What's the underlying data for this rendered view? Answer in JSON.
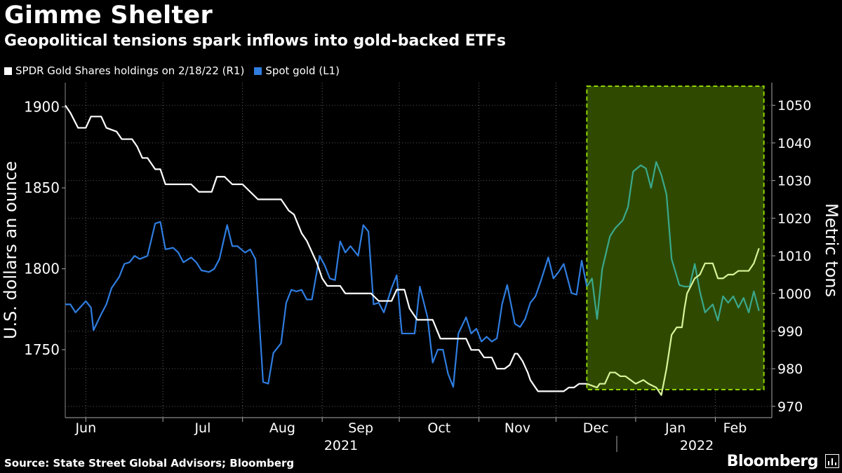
{
  "header": {
    "title": "Gimme Shelter",
    "subtitle": "Geopolitical tensions spark inflows into gold-backed ETFs"
  },
  "legend": {
    "items": [
      {
        "label": "SPDR Gold Shares holdings on 2/18/22 (R1)",
        "color": "#ffffff"
      },
      {
        "label": "Spot gold (L1)",
        "color": "#2f7de0"
      }
    ]
  },
  "footer": {
    "source": "Source: State Street Global Advisors; Bloomberg",
    "brand": "Bloomberg"
  },
  "colors": {
    "background": "#000000",
    "gold_line": "#2f7de0",
    "holdings_line": "#ffffff",
    "highlight_fill": "#2f4a00",
    "highlight_border": "#8fd400",
    "holdings_in_highlight": "#d9f59a",
    "gold_in_highlight": "#3aa88c"
  },
  "chart_data": {
    "type": "line",
    "x_axis": {
      "month_labels": [
        "Jun",
        "Jul",
        "Aug",
        "Sep",
        "Oct",
        "Nov",
        "Dec",
        "Jan",
        "Feb"
      ],
      "year_labels": [
        "2021",
        "2022"
      ],
      "range": [
        "2021-05-24",
        "2022-02-23"
      ]
    },
    "y_left": {
      "label": "U.S. dollars an ounce",
      "ticks": [
        1750,
        1800,
        1850,
        1900
      ],
      "range": [
        1708,
        1915
      ]
    },
    "y_right": {
      "label": "Metric tons",
      "ticks": [
        970,
        980,
        990,
        1000,
        1010,
        1020,
        1030,
        1040,
        1050
      ],
      "range": [
        967,
        1056
      ]
    },
    "highlight": {
      "start": "2021-12-13",
      "end": "2022-02-18"
    },
    "series": [
      {
        "name": "Spot gold (L1)",
        "axis": "left",
        "points": [
          [
            "2021-05-24",
            1778
          ],
          [
            "2021-05-26",
            1778
          ],
          [
            "2021-05-28",
            1773
          ],
          [
            "2021-06-01",
            1780
          ],
          [
            "2021-06-03",
            1776
          ],
          [
            "2021-06-04",
            1762
          ],
          [
            "2021-06-07",
            1772
          ],
          [
            "2021-06-09",
            1778
          ],
          [
            "2021-06-11",
            1788
          ],
          [
            "2021-06-14",
            1795
          ],
          [
            "2021-06-16",
            1803
          ],
          [
            "2021-06-18",
            1804
          ],
          [
            "2021-06-20",
            1808
          ],
          [
            "2021-06-22",
            1806
          ],
          [
            "2021-06-25",
            1808
          ],
          [
            "2021-06-28",
            1828
          ],
          [
            "2021-06-30",
            1829
          ],
          [
            "2021-07-02",
            1812
          ],
          [
            "2021-07-05",
            1813
          ],
          [
            "2021-07-07",
            1810
          ],
          [
            "2021-07-09",
            1804
          ],
          [
            "2021-07-12",
            1807
          ],
          [
            "2021-07-14",
            1804
          ],
          [
            "2021-07-16",
            1799
          ],
          [
            "2021-07-19",
            1798
          ],
          [
            "2021-07-21",
            1800
          ],
          [
            "2021-07-23",
            1806
          ],
          [
            "2021-07-26",
            1827
          ],
          [
            "2021-07-28",
            1814
          ],
          [
            "2021-07-30",
            1814
          ],
          [
            "2021-08-02",
            1810
          ],
          [
            "2021-08-04",
            1812
          ],
          [
            "2021-08-06",
            1806
          ],
          [
            "2021-08-09",
            1730
          ],
          [
            "2021-08-11",
            1729
          ],
          [
            "2021-08-13",
            1748
          ],
          [
            "2021-08-16",
            1754
          ],
          [
            "2021-08-18",
            1779
          ],
          [
            "2021-08-20",
            1787
          ],
          [
            "2021-08-22",
            1786
          ],
          [
            "2021-08-24",
            1787
          ],
          [
            "2021-08-26",
            1781
          ],
          [
            "2021-08-28",
            1781
          ],
          [
            "2021-08-31",
            1808
          ],
          [
            "2021-09-02",
            1802
          ],
          [
            "2021-09-04",
            1794
          ],
          [
            "2021-09-06",
            1793
          ],
          [
            "2021-09-08",
            1817
          ],
          [
            "2021-09-10",
            1810
          ],
          [
            "2021-09-12",
            1814
          ],
          [
            "2021-09-15",
            1808
          ],
          [
            "2021-09-17",
            1827
          ],
          [
            "2021-09-19",
            1823
          ],
          [
            "2021-09-21",
            1778
          ],
          [
            "2021-09-23",
            1779
          ],
          [
            "2021-09-25",
            1773
          ],
          [
            "2021-09-28",
            1788
          ],
          [
            "2021-09-30",
            1796
          ],
          [
            "2021-10-02",
            1760
          ],
          [
            "2021-10-05",
            1760
          ],
          [
            "2021-10-07",
            1760
          ],
          [
            "2021-10-09",
            1789
          ],
          [
            "2021-10-12",
            1770
          ],
          [
            "2021-10-14",
            1742
          ],
          [
            "2021-10-16",
            1750
          ],
          [
            "2021-10-18",
            1750
          ],
          [
            "2021-10-20",
            1735
          ],
          [
            "2021-10-22",
            1727
          ],
          [
            "2021-10-24",
            1760
          ],
          [
            "2021-10-27",
            1770
          ],
          [
            "2021-10-29",
            1760
          ],
          [
            "2021-10-31",
            1763
          ],
          [
            "2021-11-02",
            1755
          ],
          [
            "2021-11-04",
            1758
          ],
          [
            "2021-11-06",
            1755
          ],
          [
            "2021-11-08",
            1757
          ],
          [
            "2021-11-10",
            1778
          ],
          [
            "2021-11-12",
            1790
          ],
          [
            "2021-11-15",
            1766
          ],
          [
            "2021-11-17",
            1764
          ],
          [
            "2021-11-19",
            1769
          ],
          [
            "2021-11-21",
            1779
          ],
          [
            "2021-11-23",
            1783
          ],
          [
            "2021-11-25",
            1792
          ],
          [
            "2021-11-28",
            1807
          ],
          [
            "2021-11-30",
            1794
          ],
          [
            "2021-12-02",
            1798
          ],
          [
            "2021-12-04",
            1803
          ],
          [
            "2021-12-07",
            1785
          ],
          [
            "2021-12-09",
            1784
          ],
          [
            "2021-12-11",
            1805
          ],
          [
            "2021-12-13",
            1789
          ],
          [
            "2021-12-15",
            1794
          ],
          [
            "2021-12-17",
            1769
          ],
          [
            "2021-12-19",
            1800
          ],
          [
            "2021-12-22",
            1820
          ],
          [
            "2021-12-24",
            1825
          ],
          [
            "2021-12-27",
            1830
          ],
          [
            "2021-12-29",
            1838
          ],
          [
            "2021-12-31",
            1860
          ],
          [
            "2022-01-03",
            1864
          ],
          [
            "2022-01-05",
            1862
          ],
          [
            "2022-01-07",
            1850
          ],
          [
            "2022-01-09",
            1866
          ],
          [
            "2022-01-11",
            1858
          ],
          [
            "2022-01-13",
            1846
          ],
          [
            "2022-01-15",
            1806
          ],
          [
            "2022-01-18",
            1790
          ],
          [
            "2022-01-20",
            1789
          ],
          [
            "2022-01-22",
            1789
          ],
          [
            "2022-01-24",
            1803
          ],
          [
            "2022-01-26",
            1786
          ],
          [
            "2022-01-28",
            1773
          ],
          [
            "2022-01-31",
            1778
          ],
          [
            "2022-02-02",
            1768
          ],
          [
            "2022-02-04",
            1783
          ],
          [
            "2022-02-06",
            1779
          ],
          [
            "2022-02-08",
            1783
          ],
          [
            "2022-02-10",
            1776
          ],
          [
            "2022-02-12",
            1782
          ],
          [
            "2022-02-14",
            1773
          ],
          [
            "2022-02-16",
            1786
          ],
          [
            "2022-02-18",
            1774
          ]
        ]
      },
      {
        "name": "SPDR Gold Shares holdings on 2/18/22 (R1)",
        "axis": "right",
        "points": [
          [
            "2021-05-24",
            1050
          ],
          [
            "2021-05-26",
            1048
          ],
          [
            "2021-05-29",
            1044
          ],
          [
            "2021-06-01",
            1044
          ],
          [
            "2021-06-03",
            1047
          ],
          [
            "2021-06-07",
            1047
          ],
          [
            "2021-06-09",
            1044
          ],
          [
            "2021-06-13",
            1043
          ],
          [
            "2021-06-15",
            1041
          ],
          [
            "2021-06-19",
            1041
          ],
          [
            "2021-06-21",
            1039
          ],
          [
            "2021-06-23",
            1036
          ],
          [
            "2021-06-25",
            1036
          ],
          [
            "2021-06-28",
            1033
          ],
          [
            "2021-06-30",
            1033
          ],
          [
            "2021-07-02",
            1029
          ],
          [
            "2021-07-12",
            1029
          ],
          [
            "2021-07-15",
            1027
          ],
          [
            "2021-07-20",
            1027
          ],
          [
            "2021-07-22",
            1031
          ],
          [
            "2021-07-25",
            1031
          ],
          [
            "2021-07-28",
            1029
          ],
          [
            "2021-08-01",
            1029
          ],
          [
            "2021-08-04",
            1027
          ],
          [
            "2021-08-07",
            1025
          ],
          [
            "2021-08-16",
            1025
          ],
          [
            "2021-08-19",
            1022
          ],
          [
            "2021-08-21",
            1021
          ],
          [
            "2021-08-24",
            1016
          ],
          [
            "2021-08-26",
            1014
          ],
          [
            "2021-08-30",
            1008
          ],
          [
            "2021-09-01",
            1004
          ],
          [
            "2021-09-03",
            1002
          ],
          [
            "2021-09-08",
            1002
          ],
          [
            "2021-09-10",
            1000
          ],
          [
            "2021-09-20",
            1000
          ],
          [
            "2021-09-23",
            998
          ],
          [
            "2021-09-28",
            998
          ],
          [
            "2021-09-30",
            1001
          ],
          [
            "2021-10-03",
            1001
          ],
          [
            "2021-10-05",
            996
          ],
          [
            "2021-10-08",
            993
          ],
          [
            "2021-10-14",
            993
          ],
          [
            "2021-10-17",
            988
          ],
          [
            "2021-10-27",
            988
          ],
          [
            "2021-10-29",
            985
          ],
          [
            "2021-11-01",
            985
          ],
          [
            "2021-11-03",
            983
          ],
          [
            "2021-11-06",
            983
          ],
          [
            "2021-11-08",
            980
          ],
          [
            "2021-11-11",
            980
          ],
          [
            "2021-11-13",
            981
          ],
          [
            "2021-11-15",
            984
          ],
          [
            "2021-11-16",
            984
          ],
          [
            "2021-11-18",
            982
          ],
          [
            "2021-11-20",
            979
          ],
          [
            "2021-11-21",
            977
          ],
          [
            "2021-11-24",
            974
          ],
          [
            "2021-12-04",
            974
          ],
          [
            "2021-12-06",
            975
          ],
          [
            "2021-12-08",
            975
          ],
          [
            "2021-12-10",
            976
          ],
          [
            "2021-12-12",
            976
          ],
          [
            "2021-12-13",
            976
          ],
          [
            "2021-12-17",
            975
          ],
          [
            "2021-12-18",
            976
          ],
          [
            "2021-12-20",
            976
          ],
          [
            "2021-12-22",
            979
          ],
          [
            "2021-12-24",
            979
          ],
          [
            "2021-12-26",
            978
          ],
          [
            "2021-12-28",
            978
          ],
          [
            "2022-01-01",
            976
          ],
          [
            "2022-01-04",
            977
          ],
          [
            "2022-01-06",
            976
          ],
          [
            "2022-01-09",
            975
          ],
          [
            "2022-01-11",
            973
          ],
          [
            "2022-01-13",
            980
          ],
          [
            "2022-01-15",
            989
          ],
          [
            "2022-01-17",
            991
          ],
          [
            "2022-01-19",
            991
          ],
          [
            "2022-01-20",
            996
          ],
          [
            "2022-01-21",
            1000
          ],
          [
            "2022-01-24",
            1004
          ],
          [
            "2022-01-26",
            1005
          ],
          [
            "2022-01-28",
            1008
          ],
          [
            "2022-01-31",
            1008
          ],
          [
            "2022-02-02",
            1004
          ],
          [
            "2022-02-04",
            1004
          ],
          [
            "2022-02-06",
            1005
          ],
          [
            "2022-02-08",
            1005
          ],
          [
            "2022-02-10",
            1006
          ],
          [
            "2022-02-12",
            1006
          ],
          [
            "2022-02-14",
            1006
          ],
          [
            "2022-02-16",
            1008
          ],
          [
            "2022-02-18",
            1012
          ]
        ]
      }
    ]
  }
}
